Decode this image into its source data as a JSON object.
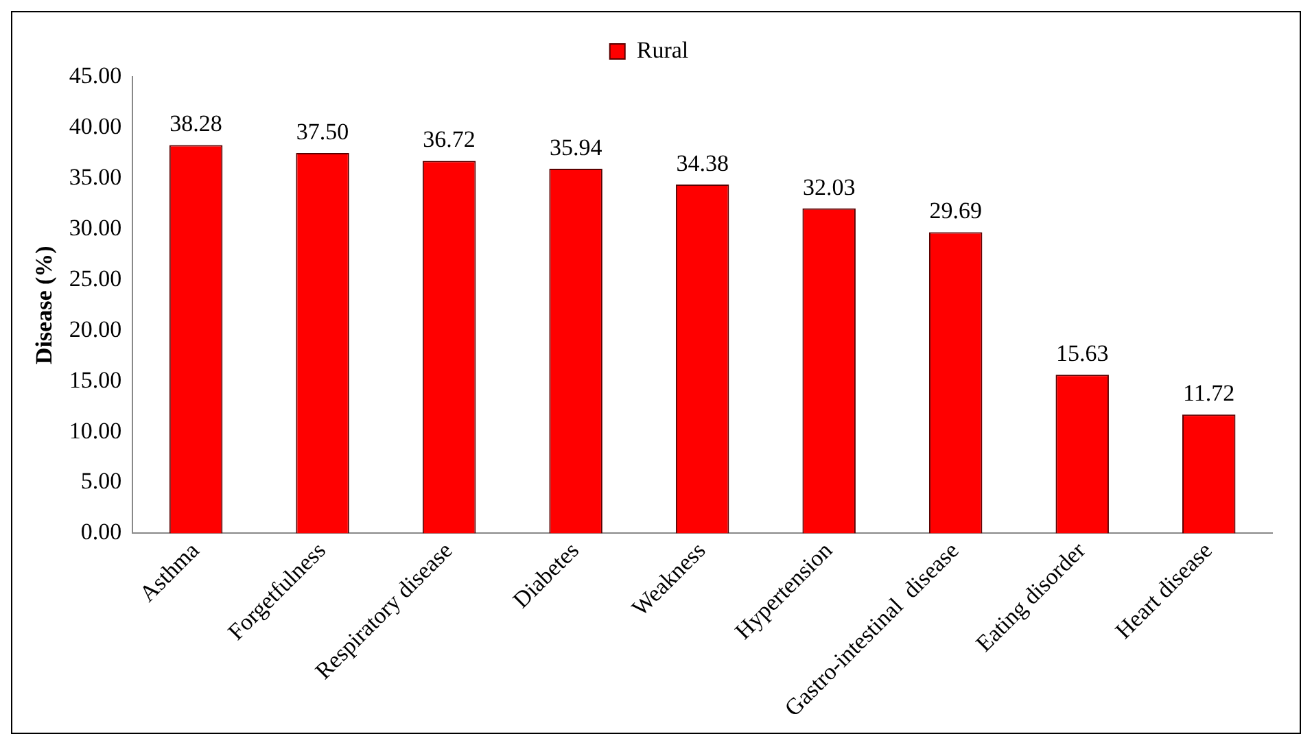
{
  "chart_data": {
    "type": "bar",
    "ylabel": "Disease (%)",
    "categories": [
      "Asthma",
      "Forgetfulness",
      "Respiratory disease",
      "Diabetes",
      "Weakness",
      "Hypertension",
      "Gastro-intestinal  disease",
      "Eating disorder",
      "Heart disease"
    ],
    "series": [
      {
        "name": "Rural",
        "color": "#ff0000",
        "values": [
          38.28,
          37.5,
          36.72,
          35.94,
          34.38,
          32.03,
          29.69,
          15.63,
          11.72
        ],
        "value_labels": [
          "38.28",
          "37.50",
          "36.72",
          "35.94",
          "34.38",
          "32.03",
          "29.69",
          "15.63",
          "11.72"
        ]
      }
    ],
    "ylim": [
      0,
      45
    ],
    "yticks": [
      {
        "value": 0,
        "label": "0.00"
      },
      {
        "value": 5,
        "label": "5.00"
      },
      {
        "value": 10,
        "label": "10.00"
      },
      {
        "value": 15,
        "label": "15.00"
      },
      {
        "value": 20,
        "label": "20.00"
      },
      {
        "value": 25,
        "label": "25.00"
      },
      {
        "value": 30,
        "label": "30.00"
      },
      {
        "value": 35,
        "label": "35.00"
      },
      {
        "value": 40,
        "label": "40.00"
      },
      {
        "value": 45,
        "label": "45.00"
      }
    ],
    "grid": false,
    "legend": "top"
  }
}
